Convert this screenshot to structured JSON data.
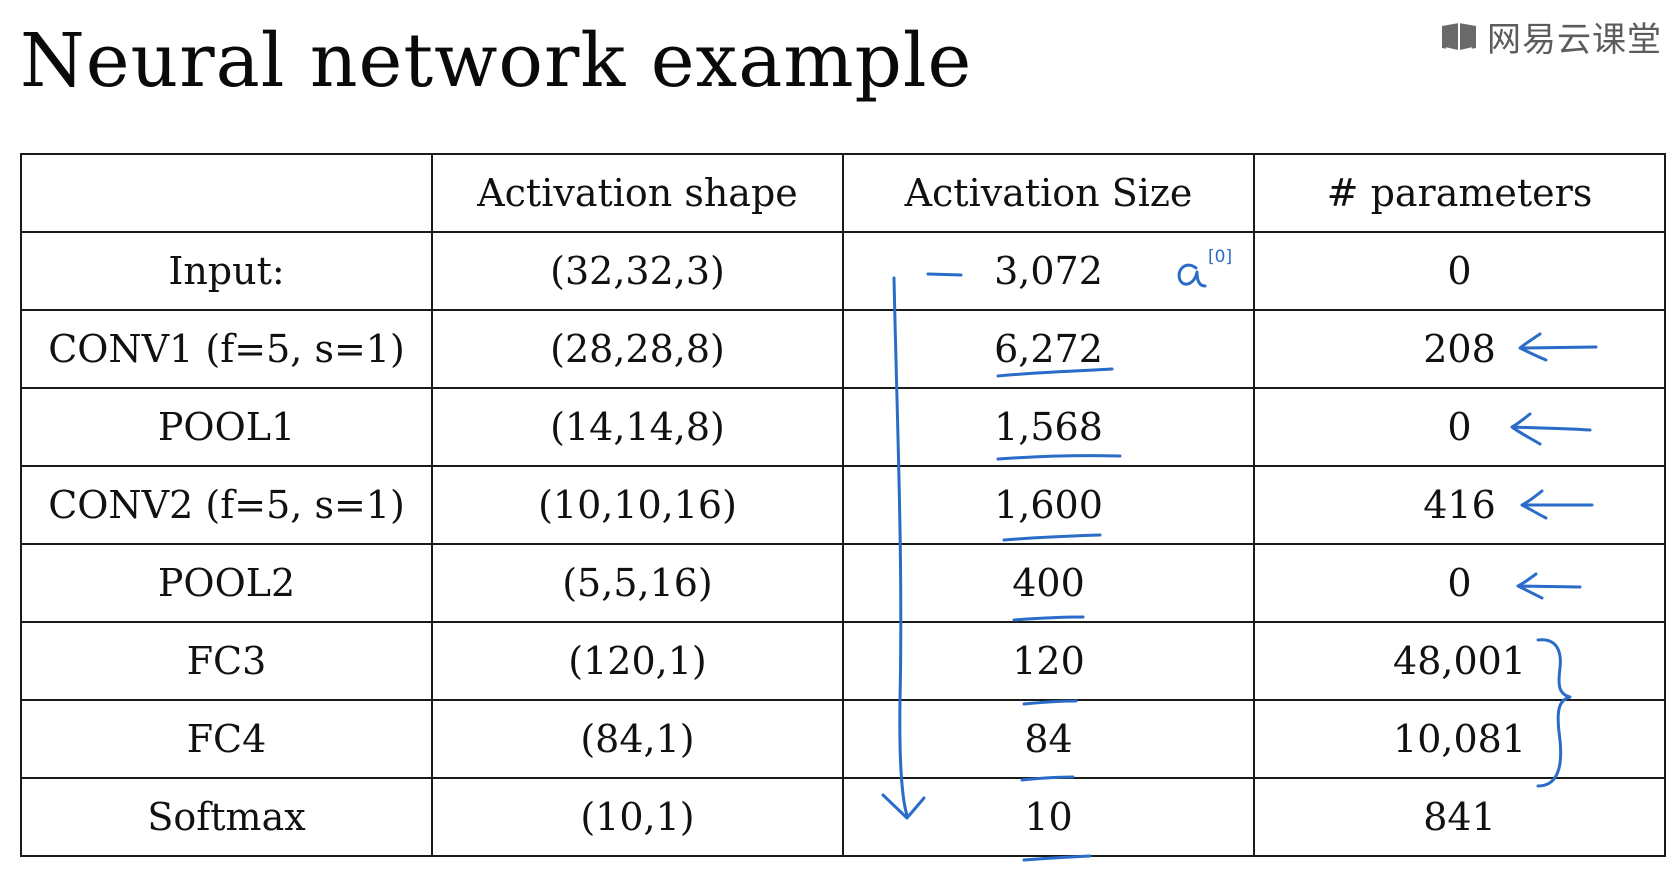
{
  "title": "Neural network example",
  "watermark": {
    "text": "网易云课堂",
    "icon": "book-logo-icon"
  },
  "table": {
    "headers": [
      "",
      "Activation shape",
      "Activation Size",
      "# parameters"
    ],
    "rows": [
      {
        "layer": "Input:",
        "shape": "(32,32,3)",
        "size": "3,072",
        "params": "0"
      },
      {
        "layer": "CONV1 (f=5, s=1)",
        "shape": "(28,28,8)",
        "size": "6,272",
        "params": "208"
      },
      {
        "layer": "POOL1",
        "shape": "(14,14,8)",
        "size": "1,568",
        "params": "0"
      },
      {
        "layer": "CONV2  (f=5, s=1)",
        "shape": "(10,10,16)",
        "size": "1,600",
        "params": "416"
      },
      {
        "layer": "POOL2",
        "shape": "(5,5,16)",
        "size": "400",
        "params": "0"
      },
      {
        "layer": "FC3",
        "shape": "(120,1)",
        "size": "120",
        "params": "48,001"
      },
      {
        "layer": "FC4",
        "shape": "(84,1)",
        "size": "84",
        "params": "10,081"
      },
      {
        "layer": "Softmax",
        "shape": "(10,1)",
        "size": "10",
        "params": "841"
      }
    ]
  },
  "annotations": {
    "color": "#2a6cc7",
    "input_note": "a[0]"
  }
}
